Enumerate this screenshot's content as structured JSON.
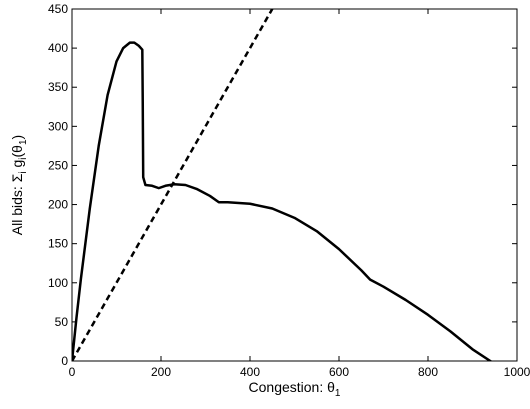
{
  "chart_data": {
    "type": "line",
    "title": "",
    "xlabel": {
      "text": "Congestion: θ",
      "subscript": "1"
    },
    "ylabel": {
      "prefix": "All bids: Σ",
      "sub1": "i",
      "mid": " g",
      "sub2": "i",
      "open": "(θ",
      "sub3": "1",
      "close": ")"
    },
    "xlim": [
      0,
      1000
    ],
    "ylim": [
      0,
      450
    ],
    "x_ticks": [
      0,
      200,
      400,
      600,
      800,
      1000
    ],
    "y_ticks": [
      0,
      50,
      100,
      150,
      200,
      250,
      300,
      350,
      400,
      450
    ],
    "grid": false,
    "legend": "none",
    "series": [
      {
        "style": "solid",
        "color": "#000000",
        "x": [
          0,
          10,
          20,
          40,
          60,
          80,
          100,
          115,
          130,
          140,
          150,
          158,
          159,
          160,
          165,
          180,
          195,
          210,
          230,
          255,
          280,
          310,
          330,
          350,
          400,
          450,
          500,
          550,
          600,
          650,
          670,
          700,
          750,
          800,
          850,
          900,
          940,
          955
        ],
        "y": [
          0,
          55,
          105,
          195,
          275,
          340,
          383,
          400,
          407,
          407,
          403,
          398,
          330,
          235,
          225,
          224,
          221,
          224,
          226,
          225,
          220,
          211,
          203,
          203,
          201,
          195,
          183,
          166,
          143,
          116,
          104,
          95,
          78,
          59,
          38,
          15,
          0,
          -6
        ]
      },
      {
        "style": "dashed",
        "color": "#000000",
        "x": [
          0,
          470
        ],
        "y": [
          0,
          470
        ]
      }
    ]
  }
}
